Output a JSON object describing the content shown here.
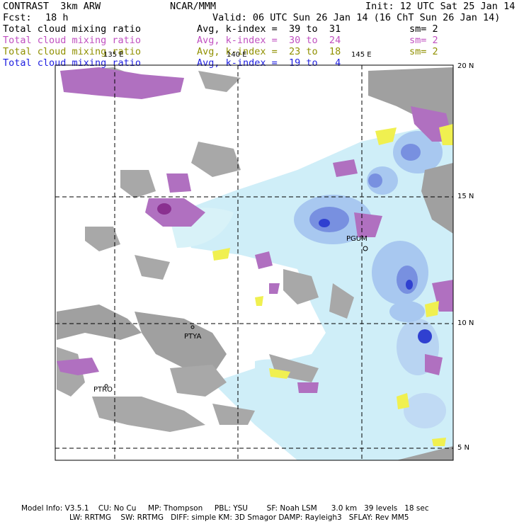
{
  "header": {
    "title": "CONTRAST  3km ARW",
    "org": "NCAR/MMM",
    "init": "Init: 12 UTC Sat 25 Jan 14",
    "fcst_label": "Fcst:",
    "fcst_value": "18 h",
    "valid": "Valid: 06 UTC Sun 26 Jan 14 (16 ChT Sun 26 Jan 14)"
  },
  "legend": [
    {
      "field": "Total cloud mixing ratio",
      "index": "Avg, k-index =  39 to  31",
      "sm": "sm= 2",
      "color": "#000000"
    },
    {
      "field": "Total cloud mixing ratio",
      "index": "Avg, k-index =  30 to  24",
      "sm": "sm= 2",
      "color": "#c050c0"
    },
    {
      "field": "Total cloud mixing ratio",
      "index": "Avg, k-index =  23 to  18",
      "sm": "sm= 2",
      "color": "#909000"
    },
    {
      "field": "Total cloud mixing ratio",
      "index": "Avg, k-index =  19 to   4",
      "sm": "",
      "color": "#2020e0"
    }
  ],
  "map": {
    "lon_labels": [
      "135 E",
      "140 E",
      "145 E"
    ],
    "lat_labels": [
      "20 N",
      "15 N",
      "10 N",
      "5 N"
    ],
    "stations": [
      "PGUM",
      "PTYA",
      "PTRO"
    ]
  },
  "footer": {
    "line1": "Model Info: V3.5.1    CU: No Cu     MP: Thompson     PBL: YSU        SF: Noah LSM      3.0 km   39 levels   18 sec",
    "line2": "LW: RRTMG    SW: RRTMG   DIFF: simple KM: 3D Smagor DAMP: Rayleigh3   SFLAY: Rev MM5"
  }
}
